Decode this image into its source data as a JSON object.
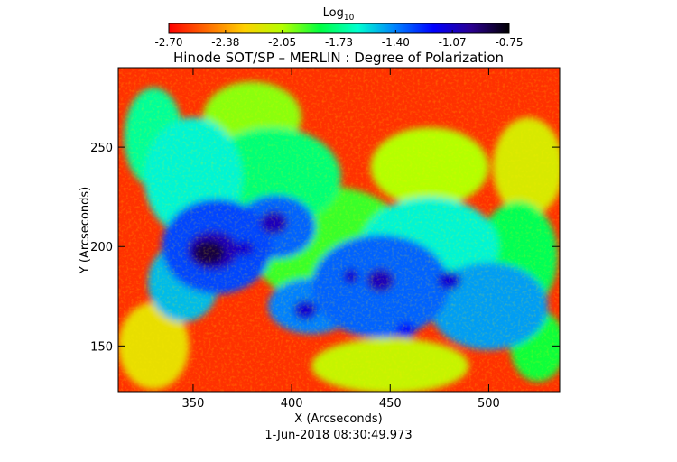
{
  "chart_data": {
    "type": "heatmap",
    "title": "Hinode SOT/SP – MERLIN : Degree of Polarization",
    "xlabel": "X (Arcseconds)",
    "ylabel": "Y (Arcseconds)",
    "timestamp": "1-Jun-2018 08:30:49.973",
    "xlim": [
      312,
      536
    ],
    "ylim": [
      127,
      290
    ],
    "x_ticks": [
      350,
      400,
      450,
      500
    ],
    "y_ticks": [
      150,
      200,
      250
    ],
    "colorbar": {
      "label_base": "Log",
      "label_sub": "10",
      "range": [
        -2.7,
        -0.75
      ],
      "ticks": [
        "-2.70",
        "-2.38",
        "-2.05",
        "-1.73",
        "-1.40",
        "-1.07",
        "-0.75"
      ],
      "colormap": [
        "#ff0000",
        "#ff6a00",
        "#ffd000",
        "#b4ff00",
        "#00ff40",
        "#00ffd0",
        "#0080ff",
        "#0000ff",
        "#2a0090",
        "#000000"
      ]
    },
    "regions": [
      {
        "x": 358,
        "y": 197,
        "rx": 8,
        "ry": 6,
        "value": -0.85
      },
      {
        "x": 360,
        "y": 198,
        "rx": 13,
        "ry": 10,
        "value": -1.05
      },
      {
        "x": 391,
        "y": 212,
        "rx": 7,
        "ry": 6,
        "value": -1.05
      },
      {
        "x": 376,
        "y": 199,
        "rx": 5,
        "ry": 4,
        "value": -1.1
      },
      {
        "x": 445,
        "y": 183,
        "rx": 7,
        "ry": 6,
        "value": -1.05
      },
      {
        "x": 430,
        "y": 185,
        "rx": 4,
        "ry": 4,
        "value": -1.1
      },
      {
        "x": 407,
        "y": 168,
        "rx": 6,
        "ry": 5,
        "value": -1.1
      },
      {
        "x": 480,
        "y": 183,
        "rx": 6,
        "ry": 5,
        "value": -1.1
      },
      {
        "x": 458,
        "y": 158,
        "rx": 5,
        "ry": 4,
        "value": -1.2
      },
      {
        "x": 362,
        "y": 200,
        "rx": 28,
        "ry": 24,
        "value": -1.3
      },
      {
        "x": 392,
        "y": 210,
        "rx": 20,
        "ry": 16,
        "value": -1.35
      },
      {
        "x": 445,
        "y": 180,
        "rx": 35,
        "ry": 26,
        "value": -1.35
      },
      {
        "x": 410,
        "y": 170,
        "rx": 22,
        "ry": 14,
        "value": -1.4
      },
      {
        "x": 500,
        "y": 170,
        "rx": 30,
        "ry": 22,
        "value": -1.45
      },
      {
        "x": 345,
        "y": 182,
        "rx": 18,
        "ry": 20,
        "value": -1.5
      },
      {
        "x": 470,
        "y": 200,
        "rx": 35,
        "ry": 25,
        "value": -1.6
      },
      {
        "x": 350,
        "y": 235,
        "rx": 25,
        "ry": 30,
        "value": -1.6
      },
      {
        "x": 330,
        "y": 255,
        "rx": 15,
        "ry": 25,
        "value": -1.7
      },
      {
        "x": 390,
        "y": 235,
        "rx": 35,
        "ry": 25,
        "value": -1.75
      },
      {
        "x": 515,
        "y": 195,
        "rx": 20,
        "ry": 28,
        "value": -1.8
      },
      {
        "x": 525,
        "y": 150,
        "rx": 14,
        "ry": 18,
        "value": -1.85
      },
      {
        "x": 420,
        "y": 200,
        "rx": 40,
        "ry": 30,
        "value": -1.9
      },
      {
        "x": 380,
        "y": 265,
        "rx": 25,
        "ry": 18,
        "value": -2.0
      },
      {
        "x": 470,
        "y": 240,
        "rx": 30,
        "ry": 20,
        "value": -2.05
      },
      {
        "x": 450,
        "y": 140,
        "rx": 40,
        "ry": 14,
        "value": -2.1
      },
      {
        "x": 520,
        "y": 240,
        "rx": 18,
        "ry": 25,
        "value": -2.15
      },
      {
        "x": 330,
        "y": 150,
        "rx": 18,
        "ry": 22,
        "value": -2.2
      }
    ],
    "background_value": -2.6,
    "grid": false
  }
}
